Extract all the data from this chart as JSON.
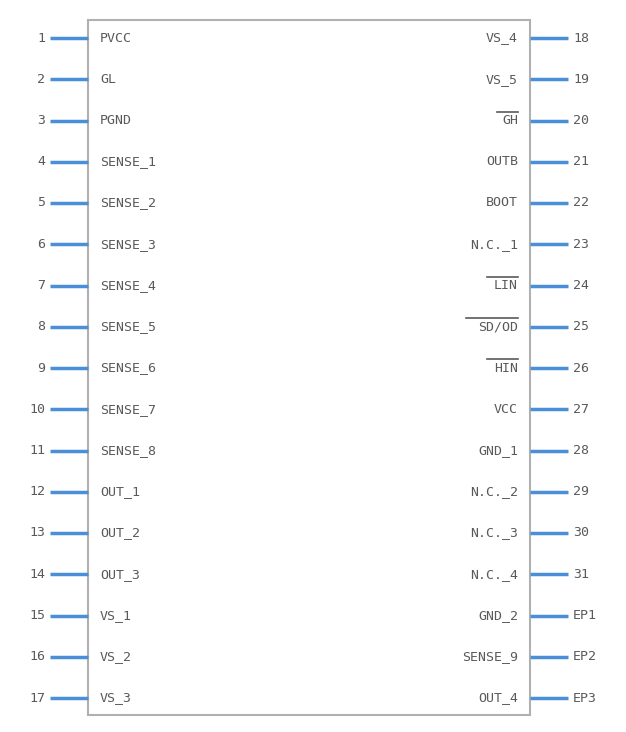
{
  "bg_color": "#ffffff",
  "box_color": "#b0b0b0",
  "pin_color": "#4a90d9",
  "text_color": "#5a5a5a",
  "pin_number_color": "#5a5a5a",
  "left_pins": [
    {
      "num": "1",
      "name": "PVCC",
      "overline": false
    },
    {
      "num": "2",
      "name": "GL",
      "overline": false
    },
    {
      "num": "3",
      "name": "PGND",
      "overline": false
    },
    {
      "num": "4",
      "name": "SENSE_1",
      "overline": false
    },
    {
      "num": "5",
      "name": "SENSE_2",
      "overline": false
    },
    {
      "num": "6",
      "name": "SENSE_3",
      "overline": false
    },
    {
      "num": "7",
      "name": "SENSE_4",
      "overline": false
    },
    {
      "num": "8",
      "name": "SENSE_5",
      "overline": false
    },
    {
      "num": "9",
      "name": "SENSE_6",
      "overline": false
    },
    {
      "num": "10",
      "name": "SENSE_7",
      "overline": false
    },
    {
      "num": "11",
      "name": "SENSE_8",
      "overline": false
    },
    {
      "num": "12",
      "name": "OUT_1",
      "overline": false
    },
    {
      "num": "13",
      "name": "OUT_2",
      "overline": false
    },
    {
      "num": "14",
      "name": "OUT_3",
      "overline": false
    },
    {
      "num": "15",
      "name": "VS_1",
      "overline": false
    },
    {
      "num": "16",
      "name": "VS_2",
      "overline": false
    },
    {
      "num": "17",
      "name": "VS_3",
      "overline": false
    }
  ],
  "right_pins": [
    {
      "num": "18",
      "name": "VS_4",
      "overline": false
    },
    {
      "num": "19",
      "name": "VS_5",
      "overline": false
    },
    {
      "num": "20",
      "name": "GH",
      "overline": true
    },
    {
      "num": "21",
      "name": "OUTB",
      "overline": false
    },
    {
      "num": "22",
      "name": "BOOT",
      "overline": false
    },
    {
      "num": "23",
      "name": "N.C._1",
      "overline": false
    },
    {
      "num": "24",
      "name": "LIN",
      "overline": true
    },
    {
      "num": "25",
      "name": "SD/OD",
      "overline": true
    },
    {
      "num": "26",
      "name": "HIN",
      "overline": true
    },
    {
      "num": "27",
      "name": "VCC",
      "overline": false
    },
    {
      "num": "28",
      "name": "GND_1",
      "overline": false
    },
    {
      "num": "29",
      "name": "N.C._2",
      "overline": false
    },
    {
      "num": "30",
      "name": "N.C._3",
      "overline": false
    },
    {
      "num": "31",
      "name": "N.C._4",
      "overline": false
    },
    {
      "num": "EP1",
      "name": "GND_2",
      "overline": false
    },
    {
      "num": "EP2",
      "name": "SENSE_9",
      "overline": false
    },
    {
      "num": "EP3",
      "name": "OUT_4",
      "overline": false
    }
  ]
}
